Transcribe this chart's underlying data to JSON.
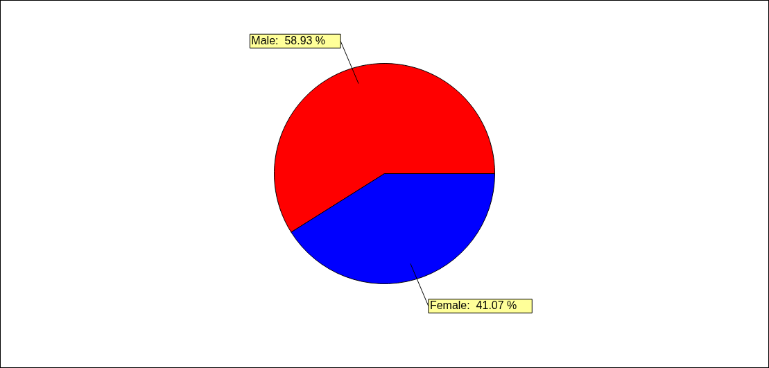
{
  "chart_data": {
    "type": "pie",
    "categories": [
      "Male",
      "Female"
    ],
    "values": [
      58.93,
      41.07
    ],
    "colors": [
      "#ff0000",
      "#0000ff"
    ],
    "value_labels": [
      "58.93 %",
      "41.07 %"
    ],
    "legend": false
  }
}
